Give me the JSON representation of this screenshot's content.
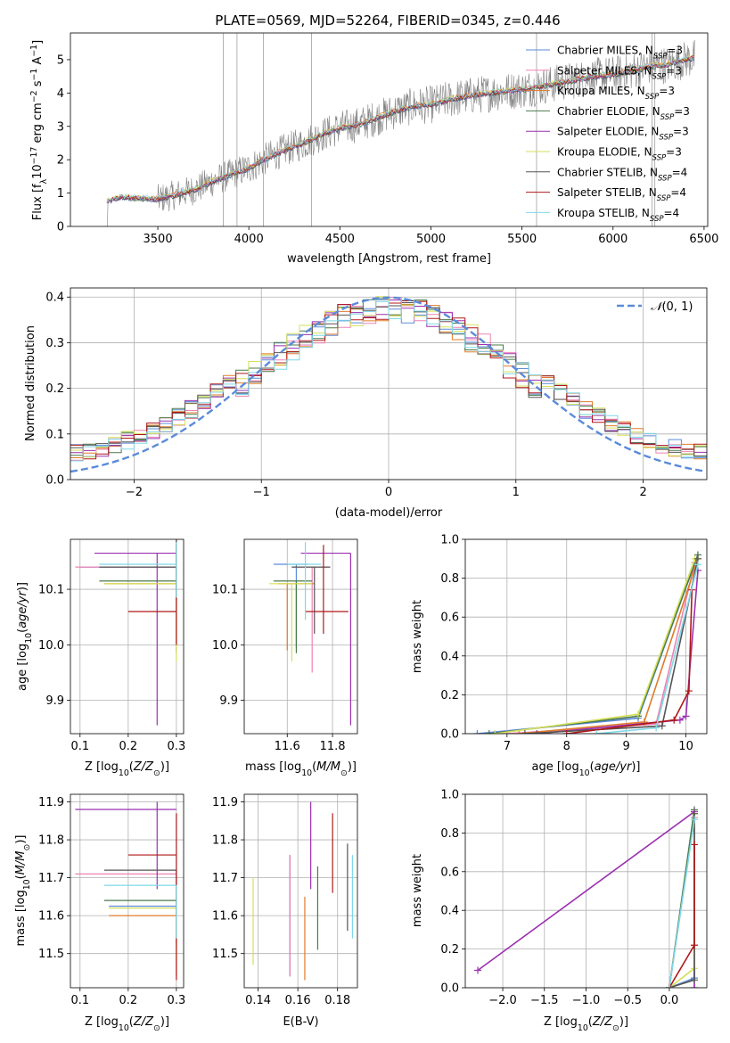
{
  "figure_title": "PLATE=0569, MJD=52264, FIBERID=0345, z=0.446",
  "colors": {
    "grid": "#b0b0b0",
    "normal_curve": "#5b8bd9",
    "spectrum_data": "#808080"
  },
  "series": [
    {
      "name": "Chabrier MILES",
      "nssp": "3",
      "color": "#5b8bd9"
    },
    {
      "name": "Salpeter MILES",
      "nssp": "3",
      "color": "#ee82b4"
    },
    {
      "name": "Kroupa MILES",
      "nssp": "3",
      "color": "#e07b2a"
    },
    {
      "name": "Chabrier ELODIE",
      "nssp": "3",
      "color": "#4a7a4a"
    },
    {
      "name": "Salpeter ELODIE",
      "nssp": "3",
      "color": "#9b30b0"
    },
    {
      "name": "Kroupa ELODIE",
      "nssp": "3",
      "color": "#d6e05a"
    },
    {
      "name": "Chabrier STELIB",
      "nssp": "4",
      "color": "#555555"
    },
    {
      "name": "Salpeter STELIB",
      "nssp": "4",
      "color": "#b01818"
    },
    {
      "name": "Kroupa STELIB",
      "nssp": "4",
      "color": "#7fd8e8"
    }
  ],
  "chart_data": [
    {
      "id": "spectrum",
      "type": "line",
      "xlabel": "wavelength [Angstrom, rest frame]",
      "ylabel_tex": "Flux [f_λ10^-17 erg cm^-2 s^-1 A^-1]",
      "xlim": [
        3020,
        6520
      ],
      "ylim": [
        0,
        5.8
      ],
      "xticks": [
        3500,
        4000,
        4500,
        5000,
        5500,
        6000,
        6500
      ],
      "yticks": [
        0,
        1,
        2,
        3,
        4,
        5
      ],
      "grid": false,
      "legend_position": "right",
      "model_knots": {
        "x": [
          3220,
          3300,
          3400,
          3500,
          3600,
          3700,
          3800,
          3900,
          4000,
          4100,
          4200,
          4300,
          4400,
          4500,
          4600,
          4700,
          4800,
          4900,
          5000,
          5100,
          5200,
          5300,
          5400,
          5500,
          5600,
          5700,
          5800,
          5900,
          6000,
          6100,
          6200,
          6300,
          6400,
          6450
        ],
        "y": [
          0.75,
          0.88,
          0.85,
          0.82,
          0.95,
          1.1,
          1.35,
          1.55,
          1.75,
          2.05,
          2.3,
          2.5,
          2.75,
          2.95,
          3.05,
          3.25,
          3.45,
          3.6,
          3.65,
          3.8,
          3.9,
          3.98,
          4.05,
          4.1,
          4.2,
          4.3,
          4.4,
          4.5,
          4.55,
          4.65,
          4.8,
          4.85,
          5.0,
          5.05
        ]
      }
    },
    {
      "id": "residual_histogram",
      "type": "histogram",
      "xlabel": "(data-model)/error",
      "ylabel": "Normed distribution",
      "xlim": [
        -2.5,
        2.5
      ],
      "ylim": [
        0,
        0.42
      ],
      "xticks": [
        -2,
        -1,
        0,
        1,
        2
      ],
      "yticks": [
        0.0,
        0.1,
        0.2,
        0.3,
        0.4
      ],
      "bin_width": 0.1,
      "curve_label": "N(0,1)",
      "grid": true,
      "legend_position": "top-right"
    },
    {
      "id": "age_vs_Z",
      "type": "errorbar",
      "xlabel": "Z [log10(Z/Z⊙)]",
      "ylabel": "age [log10(age/yr)]",
      "xlim": [
        0.08,
        0.315
      ],
      "ylim": [
        9.84,
        10.19
      ],
      "xticks": [
        0.1,
        0.2,
        0.3
      ],
      "yticks": [
        9.9,
        10.0,
        10.1
      ],
      "points": [
        {
          "s": 0,
          "x": 0.3,
          "y": 10.14,
          "xerr": [
            0.2,
            0.0
          ],
          "yerr": [
            0.05,
            0.05
          ]
        },
        {
          "s": 1,
          "x": 0.3,
          "y": 10.14,
          "xerr": [
            0.21,
            0.0
          ],
          "yerr": [
            0.04,
            0.04
          ]
        },
        {
          "s": 2,
          "x": 0.3,
          "y": 10.11,
          "xerr": [
            0.15,
            0.0
          ],
          "yerr": [
            0.11,
            0.08
          ]
        },
        {
          "s": 3,
          "x": 0.3,
          "y": 10.115,
          "xerr": [
            0.16,
            0.0
          ],
          "yerr": [
            0.13,
            0.06
          ]
        },
        {
          "s": 4,
          "x": 0.26,
          "y": 10.165,
          "xerr": [
            0.13,
            0.04
          ],
          "yerr": [
            0.31,
            0.0
          ]
        },
        {
          "s": 5,
          "x": 0.3,
          "y": 10.11,
          "xerr": [
            0.15,
            0.0
          ],
          "yerr": [
            0.14,
            0.06
          ]
        },
        {
          "s": 6,
          "x": 0.3,
          "y": 10.14,
          "xerr": [
            0.16,
            0.0
          ],
          "yerr": [
            0.06,
            0.05
          ]
        },
        {
          "s": 7,
          "x": 0.3,
          "y": 10.06,
          "xerr": [
            0.1,
            0.0
          ],
          "yerr": [
            0.06,
            0.12
          ]
        },
        {
          "s": 8,
          "x": 0.3,
          "y": 10.145,
          "xerr": [
            0.16,
            0.0
          ],
          "yerr": [
            0.06,
            0.04
          ]
        }
      ]
    },
    {
      "id": "age_vs_mass",
      "type": "errorbar",
      "xlabel": "mass [log10(M/M⊙)]",
      "ylabel": "",
      "xlim": [
        11.41,
        11.91
      ],
      "ylim": [
        9.84,
        10.19
      ],
      "xticks": [
        11.6,
        11.8
      ],
      "yticks": [
        9.9,
        10.0,
        10.1
      ],
      "points": [
        {
          "s": 0,
          "x": 11.64,
          "y": 10.145,
          "xerr": [
            0.1,
            0.05
          ],
          "yerr": [
            0.15,
            0.0
          ]
        },
        {
          "s": 1,
          "x": 11.71,
          "y": 10.14,
          "xerr": [
            0.09,
            0.08
          ],
          "yerr": [
            0.19,
            0.0
          ]
        },
        {
          "s": 2,
          "x": 11.6,
          "y": 10.11,
          "xerr": [
            0.04,
            0.12
          ],
          "yerr": [
            0.12,
            0.0
          ]
        },
        {
          "s": 3,
          "x": 11.64,
          "y": 10.115,
          "xerr": [
            0.1,
            0.07
          ],
          "yerr": [
            0.13,
            0.0
          ]
        },
        {
          "s": 4,
          "x": 11.88,
          "y": 10.165,
          "xerr": [
            0.22,
            0.0
          ],
          "yerr": [
            0.31,
            0.0
          ]
        },
        {
          "s": 5,
          "x": 11.62,
          "y": 10.11,
          "xerr": [
            0.1,
            0.09
          ],
          "yerr": [
            0.14,
            0.0
          ]
        },
        {
          "s": 6,
          "x": 11.72,
          "y": 10.14,
          "xerr": [
            0.1,
            0.07
          ],
          "yerr": [
            0.12,
            0.0
          ]
        },
        {
          "s": 7,
          "x": 11.76,
          "y": 10.06,
          "xerr": [
            0.08,
            0.11
          ],
          "yerr": [
            0.04,
            0.12
          ]
        },
        {
          "s": 8,
          "x": 11.68,
          "y": 10.145,
          "xerr": [
            0.08,
            0.07
          ],
          "yerr": [
            0.1,
            0.04
          ]
        }
      ]
    },
    {
      "id": "massweight_vs_age",
      "type": "line",
      "xlabel": "age [log10(age/yr)]",
      "ylabel": "mass weight",
      "xlim": [
        6.3,
        10.35
      ],
      "ylim": [
        0,
        1.0
      ],
      "xticks": [
        7,
        8,
        9,
        10
      ],
      "yticks": [
        0.0,
        0.2,
        0.4,
        0.6,
        0.8,
        1.0
      ],
      "grid": true,
      "lines": [
        {
          "s": 0,
          "x": [
            6.5,
            9.2,
            10.2
          ],
          "y": [
            0.0,
            0.08,
            0.92
          ]
        },
        {
          "s": 1,
          "x": [
            7.0,
            9.5,
            10.15
          ],
          "y": [
            0.0,
            0.05,
            0.88
          ]
        },
        {
          "s": 2,
          "x": [
            7.2,
            9.3,
            10.2
          ],
          "y": [
            0.0,
            0.06,
            0.9
          ]
        },
        {
          "s": 3,
          "x": [
            6.7,
            9.2,
            10.2
          ],
          "y": [
            0.0,
            0.09,
            0.92
          ]
        },
        {
          "s": 4,
          "x": [
            7.5,
            9.9,
            10.0,
            10.2
          ],
          "y": [
            0.0,
            0.07,
            0.09,
            0.84
          ]
        },
        {
          "s": 5,
          "x": [
            6.8,
            9.2,
            10.15
          ],
          "y": [
            0.0,
            0.1,
            0.9
          ]
        },
        {
          "s": 6,
          "x": [
            7.3,
            9.6,
            10.2
          ],
          "y": [
            0.0,
            0.04,
            0.9
          ]
        },
        {
          "s": 7,
          "x": [
            8.0,
            9.8,
            10.05,
            10.1
          ],
          "y": [
            0.0,
            0.07,
            0.22,
            0.74
          ]
        },
        {
          "s": 8,
          "x": [
            8.5,
            9.5,
            10.2
          ],
          "y": [
            0.0,
            0.03,
            0.87
          ]
        }
      ]
    },
    {
      "id": "mass_vs_Z",
      "type": "errorbar",
      "xlabel": "Z [log10(Z/Z⊙)]",
      "ylabel": "mass [log10(M/M⊙)]",
      "xlim": [
        0.08,
        0.315
      ],
      "ylim": [
        11.41,
        11.92
      ],
      "xticks": [
        0.1,
        0.2,
        0.3
      ],
      "yticks": [
        11.5,
        11.6,
        11.7,
        11.8,
        11.9
      ],
      "points": [
        {
          "s": 0,
          "x": 0.3,
          "y": 11.625,
          "xerr": [
            0.14,
            0.0
          ],
          "yerr": [
            0.08,
            0.02
          ]
        },
        {
          "s": 1,
          "x": 0.3,
          "y": 11.71,
          "xerr": [
            0.21,
            0.0
          ],
          "yerr": [
            0.19,
            0.0
          ]
        },
        {
          "s": 2,
          "x": 0.3,
          "y": 11.6,
          "xerr": [
            0.14,
            0.0
          ],
          "yerr": [
            0.16,
            0.0
          ]
        },
        {
          "s": 3,
          "x": 0.3,
          "y": 11.64,
          "xerr": [
            0.15,
            0.0
          ],
          "yerr": [
            0.12,
            0.0
          ]
        },
        {
          "s": 4,
          "x": 0.26,
          "y": 11.88,
          "xerr": [
            0.17,
            0.04
          ],
          "yerr": [
            0.21,
            0.02
          ]
        },
        {
          "s": 5,
          "x": 0.3,
          "y": 11.62,
          "xerr": [
            0.14,
            0.0
          ],
          "yerr": [
            0.14,
            0.0
          ]
        },
        {
          "s": 6,
          "x": 0.3,
          "y": 11.72,
          "xerr": [
            0.15,
            0.0
          ],
          "yerr": [
            0.08,
            0.0
          ]
        },
        {
          "s": 7,
          "x": 0.3,
          "y": 11.76,
          "xerr": [
            0.1,
            0.0
          ],
          "yerr": [
            0.33,
            0.11
          ]
        },
        {
          "s": 8,
          "x": 0.3,
          "y": 11.68,
          "xerr": [
            0.15,
            0.0
          ],
          "yerr": [
            0.14,
            0.0
          ]
        }
      ]
    },
    {
      "id": "mass_vs_ebv",
      "type": "errorbar",
      "xlabel": "E(B-V)",
      "ylabel": "",
      "xlim": [
        0.133,
        0.19
      ],
      "ylim": [
        11.41,
        11.92
      ],
      "xticks": [
        0.14,
        0.16,
        0.18
      ],
      "yticks": [
        11.5,
        11.6,
        11.7,
        11.8,
        11.9
      ],
      "points": [
        {
          "s": 0,
          "x": 0.156,
          "y": 11.6,
          "xerr": [
            0,
            0
          ],
          "yerr": [
            0.16,
            0.16
          ]
        },
        {
          "s": 1,
          "x": 0.156,
          "y": 11.65,
          "xerr": [
            0,
            0
          ],
          "yerr": [
            0.21,
            0.11
          ]
        },
        {
          "s": 2,
          "x": 0.1635,
          "y": 11.54,
          "xerr": [
            0,
            0
          ],
          "yerr": [
            0.11,
            0.11
          ]
        },
        {
          "s": 3,
          "x": 0.17,
          "y": 11.62,
          "xerr": [
            0,
            0
          ],
          "yerr": [
            0.11,
            0.11
          ]
        },
        {
          "s": 4,
          "x": 0.1665,
          "y": 11.78,
          "xerr": [
            0,
            0
          ],
          "yerr": [
            0.11,
            0.12
          ]
        },
        {
          "s": 5,
          "x": 0.1375,
          "y": 11.59,
          "xerr": [
            0,
            0
          ],
          "yerr": [
            0.12,
            0.11
          ]
        },
        {
          "s": 6,
          "x": 0.185,
          "y": 11.68,
          "xerr": [
            0,
            0
          ],
          "yerr": [
            0.12,
            0.11
          ]
        },
        {
          "s": 7,
          "x": 0.1775,
          "y": 11.76,
          "xerr": [
            0,
            0
          ],
          "yerr": [
            0.1,
            0.11
          ]
        },
        {
          "s": 8,
          "x": 0.1875,
          "y": 11.65,
          "xerr": [
            0,
            0
          ],
          "yerr": [
            0.11,
            0.11
          ]
        }
      ]
    },
    {
      "id": "massweight_vs_Z",
      "type": "line",
      "xlabel": "Z [log10(Z/Z⊙)]",
      "ylabel": "mass weight",
      "xlim": [
        -2.45,
        0.45
      ],
      "ylim": [
        0,
        1.0
      ],
      "xticks": [
        -2.0,
        -1.5,
        -1.0,
        -0.5,
        0.0
      ],
      "yticks": [
        0.0,
        0.2,
        0.4,
        0.6,
        0.8,
        1.0
      ],
      "grid": true,
      "lines": [
        {
          "s": 0,
          "x": [
            0.0,
            0.3,
            0.3
          ],
          "y": [
            0.0,
            0.05,
            0.9
          ]
        },
        {
          "s": 1,
          "x": [
            0.0,
            0.3
          ],
          "y": [
            0.0,
            0.88
          ]
        },
        {
          "s": 2,
          "x": [
            0.0,
            0.3
          ],
          "y": [
            0.0,
            0.9
          ]
        },
        {
          "s": 3,
          "x": [
            0.0,
            0.3
          ],
          "y": [
            0.0,
            0.92
          ]
        },
        {
          "s": 4,
          "x": [
            -2.3,
            0.3,
            0.3
          ],
          "y": [
            0.09,
            0.91,
            0.0
          ]
        },
        {
          "s": 5,
          "x": [
            0.0,
            0.3,
            0.3
          ],
          "y": [
            0.0,
            0.1,
            0.9
          ]
        },
        {
          "s": 6,
          "x": [
            0.0,
            0.3,
            0.3
          ],
          "y": [
            0.0,
            0.04,
            0.9
          ]
        },
        {
          "s": 7,
          "x": [
            0.0,
            0.3,
            0.3
          ],
          "y": [
            0.0,
            0.22,
            0.74
          ]
        },
        {
          "s": 8,
          "x": [
            0.0,
            0.3
          ],
          "y": [
            0.0,
            0.87
          ]
        }
      ]
    }
  ]
}
